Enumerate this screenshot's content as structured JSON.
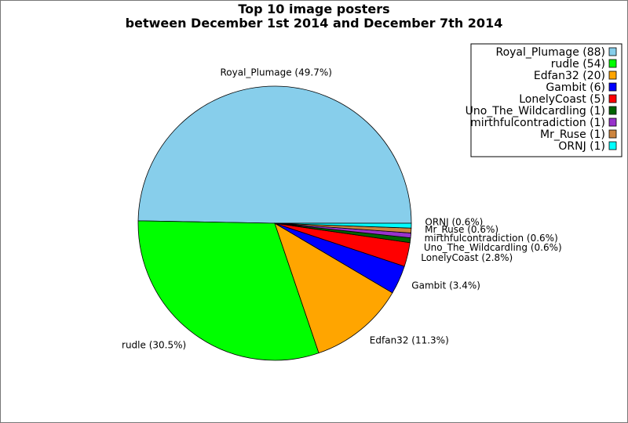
{
  "chart_data": {
    "type": "pie",
    "title": "Top 10 image posters",
    "subtitle": "between December 1st 2014 and December 7th 2014",
    "legend_position": "top-right",
    "slices": [
      {
        "name": "Royal_Plumage",
        "value": 88,
        "label": "Royal_Plumage (49.7%)",
        "legend": "Royal_Plumage (88)",
        "color": "#87ceeb"
      },
      {
        "name": "rudle",
        "value": 54,
        "label": "rudle (30.5%)",
        "legend": "rudle (54)",
        "color": "#00ff00"
      },
      {
        "name": "Edfan32",
        "value": 20,
        "label": "Edfan32 (11.3%)",
        "legend": "Edfan32 (20)",
        "color": "#ffa500"
      },
      {
        "name": "Gambit",
        "value": 6,
        "label": "Gambit (3.4%)",
        "legend": "Gambit (6)",
        "color": "#0000ff"
      },
      {
        "name": "LonelyCoast",
        "value": 5,
        "label": "LonelyCoast (2.8%)",
        "legend": "LonelyCoast (5)",
        "color": "#ff0000"
      },
      {
        "name": "Uno_The_Wildcardling",
        "value": 1,
        "label": "Uno_The_Wildcardling (0.6%)",
        "legend": "Uno_The_Wildcardling (1)",
        "color": "#006400"
      },
      {
        "name": "mirthfulcontradiction",
        "value": 1,
        "label": "mirthfulcontradiction (0.6%)",
        "legend": "mirthfulcontradiction (1)",
        "color": "#9932cc"
      },
      {
        "name": "Mr_Ruse",
        "value": 1,
        "label": "Mr_Ruse (0.6%)",
        "legend": "Mr_Ruse (1)",
        "color": "#cd853f"
      },
      {
        "name": "ORNJ",
        "value": 1,
        "label": "ORNJ (0.6%)",
        "legend": "ORNJ (1)",
        "color": "#00ffff"
      }
    ]
  }
}
